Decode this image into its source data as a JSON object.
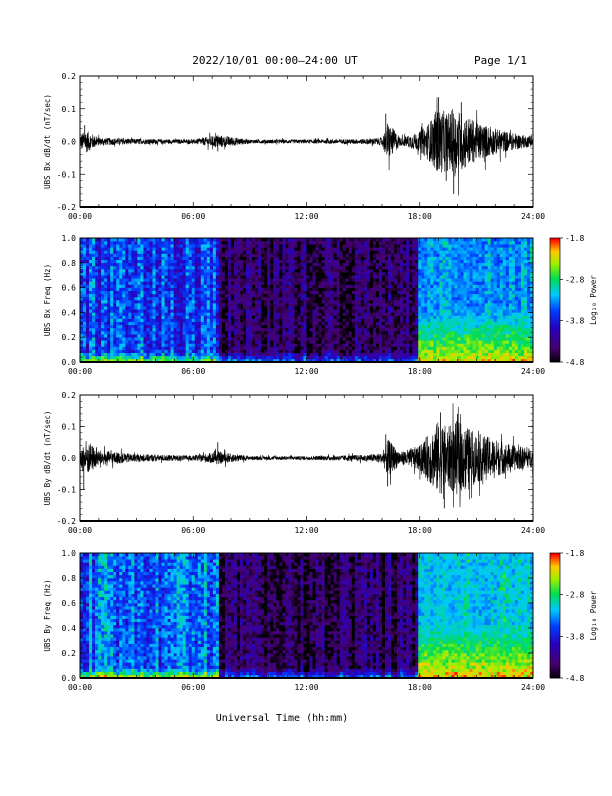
{
  "header": {
    "title": "2022/10/01  00:00–24:00 UT",
    "page": "Page 1/1"
  },
  "x_axis": {
    "label": "Universal Time (hh:mm)",
    "ticks": [
      "00:00",
      "06:00",
      "12:00",
      "18:00",
      "24:00"
    ]
  },
  "colorbar": {
    "label": "Log₁₀ Power",
    "ticks": [
      "-1.8",
      "-2.8",
      "-3.8",
      "-4.8"
    ]
  },
  "colors": {
    "ink": "#000000",
    "background": "#ffffff"
  },
  "chart_data": [
    {
      "type": "line",
      "panel": "bx-dbdt",
      "ylabel": "UBS Bx dB/dt (nT/sec)",
      "ylim": [
        -0.2,
        0.2
      ],
      "yticks": [
        "0.2",
        "0.1",
        "0.0",
        "-0.1",
        "-0.2"
      ],
      "xlim_hours": [
        0,
        24
      ],
      "series": [
        {
          "x_hours": [
            0,
            0.3,
            1,
            3,
            6,
            7.3,
            9,
            12,
            15,
            16,
            16.3,
            17,
            18,
            18.5,
            19,
            19.5,
            20,
            21,
            22,
            23,
            24
          ],
          "amplitude": [
            0.02,
            0.035,
            0.012,
            0.008,
            0.006,
            0.02,
            0.006,
            0.006,
            0.008,
            0.012,
            0.06,
            0.012,
            0.03,
            0.06,
            0.1,
            0.09,
            0.1,
            0.06,
            0.04,
            0.025,
            0.015
          ],
          "spikes": [
            {
              "x_hours": 0.25,
              "value": 0.05
            },
            {
              "x_hours": 7.3,
              "value": -0.03
            },
            {
              "x_hours": 16.2,
              "value": 0.085
            },
            {
              "x_hours": 16.3,
              "value": -0.03
            },
            {
              "x_hours": 19.0,
              "value": 0.135
            },
            {
              "x_hours": 19.8,
              "value": -0.16
            },
            {
              "x_hours": 20.2,
              "value": 0.12
            },
            {
              "x_hours": 19.4,
              "value": -0.12
            }
          ]
        }
      ]
    },
    {
      "type": "heatmap",
      "panel": "bx-freq",
      "ylabel": "UBS Bx Freq (Hz)",
      "ylim": [
        0.0,
        1.0
      ],
      "yticks": [
        "1.0",
        "0.8",
        "0.6",
        "0.4",
        "0.2",
        "0.0"
      ],
      "xlim_hours": [
        0,
        24
      ],
      "zlim": [
        -4.8,
        -1.8
      ],
      "features": [
        {
          "hours": [
            0,
            7.3
          ],
          "base_log_power": -3.6
        },
        {
          "hours": [
            7.3,
            18
          ],
          "base_log_power": -4.5
        },
        {
          "hours": [
            18,
            24
          ],
          "base_log_power": -3.4
        },
        {
          "low_frequency_enhancement_hours": [
            18,
            24
          ],
          "peak_log_power": -2.0
        }
      ]
    },
    {
      "type": "line",
      "panel": "by-dbdt",
      "ylabel": "UBS By dB/dt (nT/sec)",
      "ylim": [
        -0.2,
        0.2
      ],
      "yticks": [
        "0.2",
        "0.1",
        "0.0",
        "-0.1",
        "-0.2"
      ],
      "xlim_hours": [
        0,
        24
      ],
      "series": [
        {
          "x_hours": [
            0,
            0.3,
            1,
            3,
            6,
            7.3,
            9,
            12,
            15,
            16,
            16.3,
            17,
            18,
            18.5,
            19,
            19.5,
            20,
            21,
            22,
            23,
            24
          ],
          "amplitude": [
            0.03,
            0.06,
            0.025,
            0.012,
            0.008,
            0.02,
            0.006,
            0.006,
            0.01,
            0.015,
            0.06,
            0.02,
            0.04,
            0.08,
            0.12,
            0.1,
            0.12,
            0.08,
            0.06,
            0.04,
            0.03
          ],
          "spikes": [
            {
              "x_hours": 0.2,
              "value": -0.1
            },
            {
              "x_hours": 7.3,
              "value": 0.05
            },
            {
              "x_hours": 16.2,
              "value": 0.075
            },
            {
              "x_hours": 16.3,
              "value": -0.09
            },
            {
              "x_hours": 19.1,
              "value": 0.145
            },
            {
              "x_hours": 19.3,
              "value": -0.16
            },
            {
              "x_hours": 20.0,
              "value": 0.14
            },
            {
              "x_hours": 20.6,
              "value": -0.1
            }
          ]
        }
      ]
    },
    {
      "type": "heatmap",
      "panel": "by-freq",
      "ylabel": "UBS By Freq (Hz)",
      "ylim": [
        0.0,
        1.0
      ],
      "yticks": [
        "1.0",
        "0.8",
        "0.6",
        "0.4",
        "0.2",
        "0.0"
      ],
      "xlim_hours": [
        0,
        24
      ],
      "zlim": [
        -4.8,
        -1.8
      ],
      "features": [
        {
          "hours": [
            0,
            7.3
          ],
          "base_log_power": -3.4
        },
        {
          "hours": [
            7.3,
            18
          ],
          "base_log_power": -4.5
        },
        {
          "hours": [
            18,
            24
          ],
          "base_log_power": -3.2
        },
        {
          "low_frequency_enhancement_hours": [
            18,
            24
          ],
          "peak_log_power": -1.9
        }
      ]
    }
  ]
}
